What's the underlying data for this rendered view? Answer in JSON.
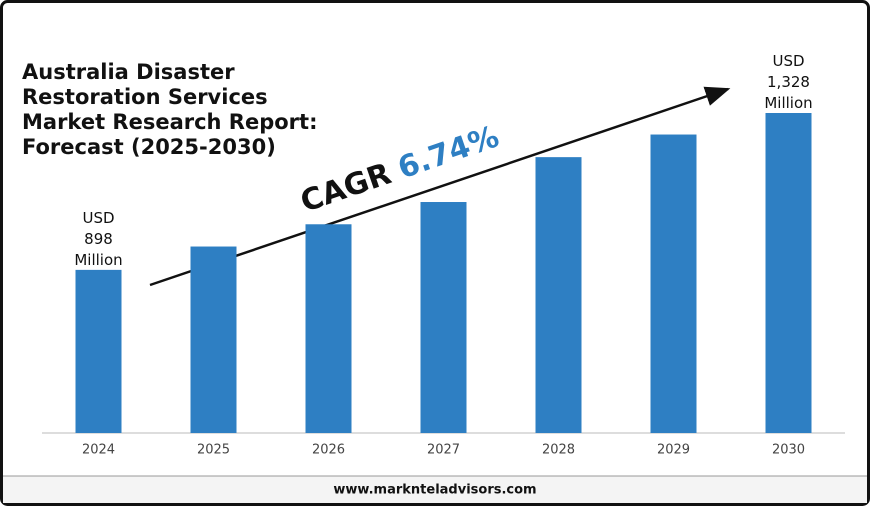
{
  "chart_data": {
    "type": "bar",
    "title": "Australia Disaster Restoration Services Market Research Report: Forecast (2025-2030)",
    "categories": [
      "2024",
      "2025",
      "2026",
      "2027",
      "2028",
      "2029",
      "2030"
    ],
    "values": [
      898,
      962,
      1023,
      1084,
      1207,
      1269,
      1328
    ],
    "value_labels": [
      "USD 898 Million",
      null,
      null,
      null,
      null,
      null,
      "USD 1,328 Million"
    ],
    "color": "#2e7fc3",
    "ylim": [
      714,
      1328
    ],
    "annotation": {
      "text": "CAGR",
      "rate": "6.74%"
    },
    "source": "www.marknteladvisors.com"
  }
}
